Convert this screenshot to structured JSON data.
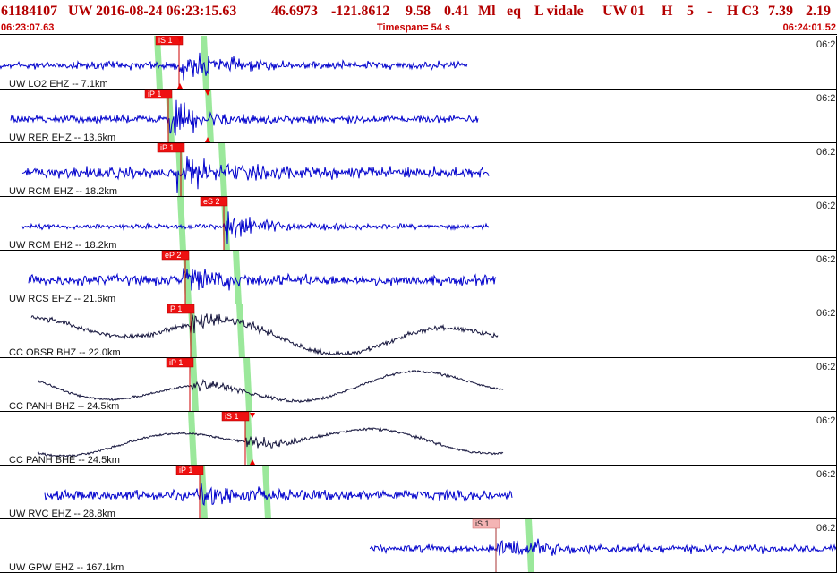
{
  "header": {
    "event_id": "61184107",
    "network": "UW",
    "datetime": "2016-08-24 06:23:15.63",
    "lat": "46.6973",
    "lon": "-121.8612",
    "depth": "9.58",
    "magnitude": "0.41",
    "mag_type": "Ml",
    "event_type": "eq",
    "analyst": "L vidale",
    "source": "UW 01",
    "flag1": "H",
    "count": "5",
    "dash": "-",
    "flag2": "H C3",
    "value1": "7.39",
    "value2": "2.19",
    "start_time": "06:23:07.63",
    "timespan": "Timespan=  54 s",
    "end_time": "06:24:01.52"
  },
  "colors": {
    "trace_blue": "#0000cc",
    "trace_navy": "#14143c",
    "pick_red": "#ee1111",
    "pick_pink": "#f4b4b4",
    "green_band": "#9be89b",
    "title_red": "#b40000"
  },
  "time_label": "06:2",
  "traces": [
    {
      "label": "UW LO2 EHZ -- 7.1km",
      "color": "blue",
      "x0": 0,
      "x1": 522,
      "onset": 201,
      "amp": 6,
      "burst": 20,
      "lf": 0,
      "greens": [
        172,
        224
      ],
      "picks": [
        {
          "text": "iS 1",
          "x": 174,
          "style": "red",
          "marker": 201
        }
      ]
    },
    {
      "label": "UW RER EHZ -- 13.6km",
      "color": "blue",
      "x0": 12,
      "x1": 534,
      "onset": 190,
      "amp": 6,
      "burst": 24,
      "lf": 0,
      "greens": [
        185,
        229
      ],
      "picks": [
        {
          "text": "iP 1",
          "x": 162,
          "style": "red",
          "marker": 232
        }
      ]
    },
    {
      "label": "UW RCM EHZ -- 18.2km",
      "color": "blue",
      "x0": 25,
      "x1": 546,
      "onset": 198,
      "amp": 9,
      "burst": 24,
      "lf": 0,
      "greens": [
        196,
        244
      ],
      "picks": [
        {
          "text": "iP 1",
          "x": 176,
          "style": "red",
          "marker": null
        }
      ]
    },
    {
      "label": "UW RCM EH2 -- 18.2km",
      "color": "blue",
      "x0": 25,
      "x1": 546,
      "onset": 250,
      "amp": 4,
      "burst": 24,
      "lf": 0,
      "greens": [
        198,
        247
      ],
      "picks": [
        {
          "text": "eS 2",
          "x": 224,
          "style": "red",
          "marker": null
        }
      ]
    },
    {
      "label": "UW RCS EHZ -- 21.6km",
      "color": "blue",
      "x0": 32,
      "x1": 554,
      "onset": 205,
      "amp": 8,
      "burst": 20,
      "lf": 0,
      "greens": [
        204,
        260
      ],
      "picks": [
        {
          "text": "eP 2",
          "x": 181,
          "style": "red",
          "marker": null
        }
      ]
    },
    {
      "label": "CC OBSR BHZ -- 22.0km",
      "color": "navy",
      "x0": 35,
      "x1": 556,
      "onset": 212,
      "amp": 4,
      "burst": 14,
      "lf": 13,
      "greens": [
        210,
        264
      ],
      "picks": [
        {
          "text": "P 1",
          "x": 187,
          "style": "red",
          "marker": null
        }
      ]
    },
    {
      "label": "CC PANH BHZ -- 24.5km",
      "color": "navy",
      "x0": 42,
      "x1": 562,
      "onset": 215,
      "amp": 2,
      "burst": 12,
      "lf": 11,
      "greens": [
        212,
        272
      ],
      "picks": [
        {
          "text": "iP 1",
          "x": 186,
          "style": "red",
          "marker": null
        }
      ]
    },
    {
      "label": "CC PANH BHE -- 24.5km",
      "color": "navy",
      "x0": 42,
      "x1": 562,
      "onset": 275,
      "amp": 2,
      "burst": 12,
      "lf": 9,
      "greens": [
        210,
        273
      ],
      "picks": [
        {
          "text": "iS 1",
          "x": 248,
          "style": "red",
          "marker": 282
        }
      ]
    },
    {
      "label": "UW RVC EHZ -- 28.8km",
      "color": "blue",
      "x0": 50,
      "x1": 572,
      "onset": 224,
      "amp": 8,
      "burst": 18,
      "lf": 0,
      "greens": [
        222,
        293
      ],
      "picks": [
        {
          "text": "iP 1",
          "x": 197,
          "style": "red",
          "marker": null
        }
      ]
    },
    {
      "label": "UW GPW EHZ -- 167.1km",
      "color": "blue",
      "x0": 413,
      "x1": 935,
      "onset": 557,
      "amp": 6,
      "burst": 22,
      "lf": 0,
      "greens": [
        587
      ],
      "picks": [
        {
          "text": "iS 1",
          "x": 528,
          "style": "pink",
          "marker": null
        }
      ]
    }
  ]
}
